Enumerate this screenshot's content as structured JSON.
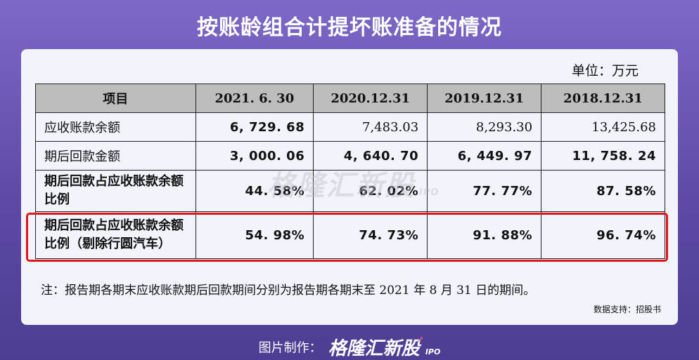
{
  "title": "按账龄组合计提坏账准备的情况",
  "unit": "单位：万元",
  "table": {
    "headers": [
      "项目",
      "2021. 6. 30",
      "2020.12.31",
      "2019.12.31",
      "2018.12.31"
    ],
    "rows": [
      {
        "label": "应收账款余额",
        "values": [
          "6, 729. 68",
          "7,483.03",
          "8,293.30",
          "13,425.68"
        ]
      },
      {
        "label": "期后回款金额",
        "values": [
          "3, 000. 06",
          "4, 640. 70",
          "6, 449. 97",
          "11, 758. 24"
        ]
      },
      {
        "label": "期后回款占应收账款余额比例",
        "values": [
          "44. 58%",
          "62. 02%",
          "77. 77%",
          "87. 58%"
        ]
      },
      {
        "label": "期后回款占应收账款余额比例（剔除行圆汽车）",
        "values": [
          "54. 98%",
          "74. 73%",
          "91. 88%",
          "96. 74%"
        ]
      }
    ]
  },
  "note": "注：报告期各期末应收账款期后回款期间分别为报告期各期末至 2021 年 8 月 31 日的期间。",
  "source": "数据支持：招股书",
  "watermark": {
    "brand": "格隆汇新股",
    "suffix": "IPO"
  },
  "footer": {
    "label": "图片制作：",
    "brand": "格隆汇新股",
    "suffix": "IPO"
  },
  "colors": {
    "highlight": "#e0161c",
    "header_bg": "#bdbdbd",
    "background": "#6a55b5"
  }
}
